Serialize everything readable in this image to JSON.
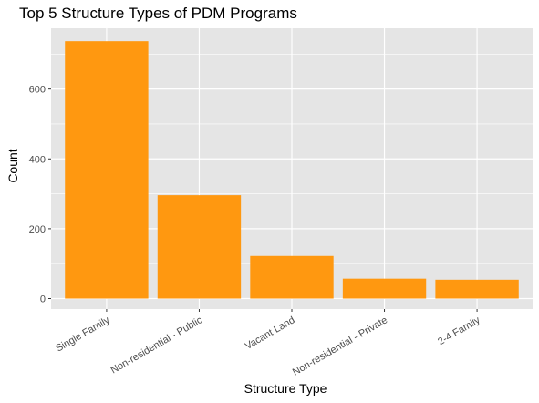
{
  "chart_data": {
    "type": "bar",
    "title": "Top 5 Structure Types of PDM Programs",
    "xlabel": "Structure Type",
    "ylabel": "Count",
    "categories": [
      "Single Family",
      "Non-residential - Public",
      "Vacant Land",
      "Non-residential - Private",
      "2-4 Family"
    ],
    "values": [
      737,
      296,
      122,
      57,
      54
    ],
    "ylim": [
      -30,
      774
    ],
    "yticks": [
      0,
      200,
      400,
      600
    ],
    "bar_color": "#FF9810",
    "panel_color": "#E5E5E5",
    "grid": true,
    "legend": "none"
  }
}
